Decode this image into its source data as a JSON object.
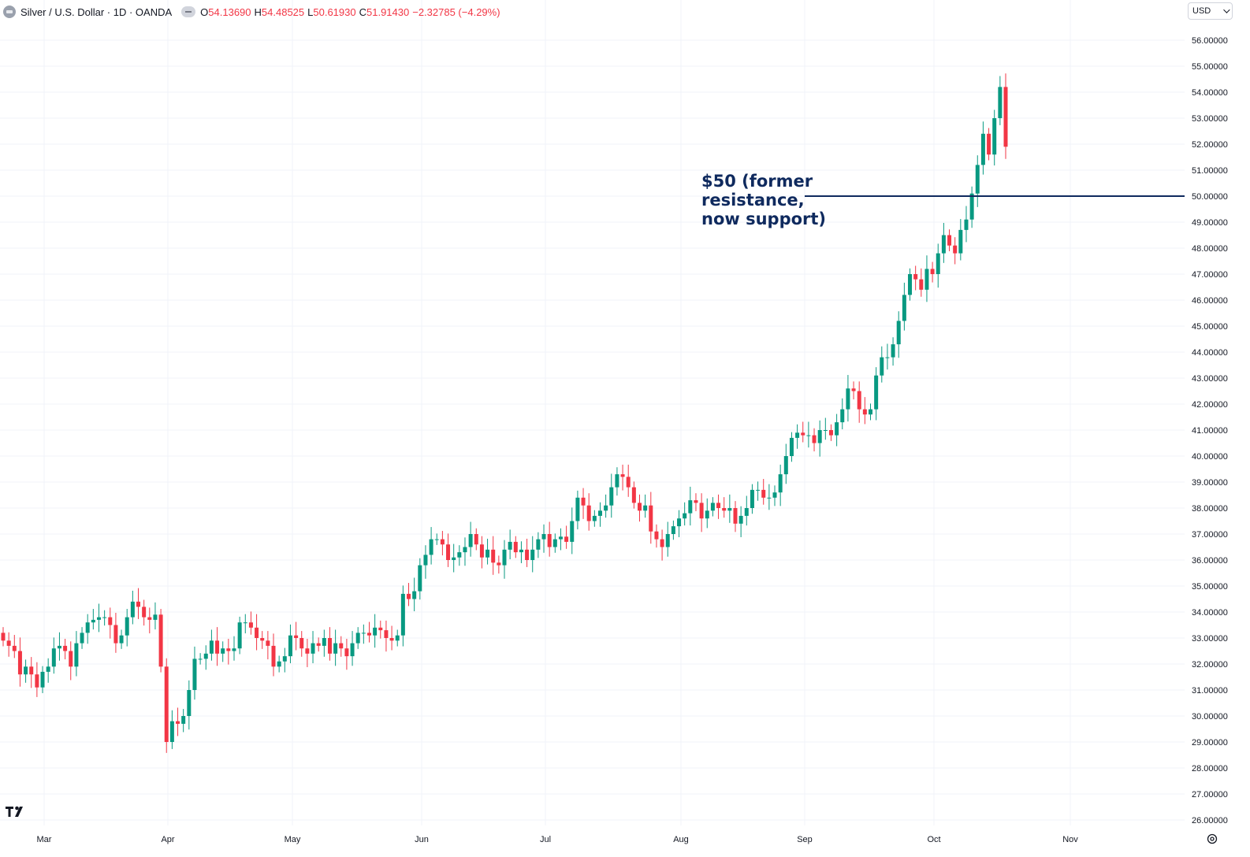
{
  "header": {
    "symbol": "Silver / U.S. Dollar · 1D · OANDA",
    "o_label": "O",
    "o_value": "54.13690",
    "h_label": "H",
    "h_value": "54.48525",
    "l_label": "L",
    "l_value": "50.61930",
    "c_label": "C",
    "c_value": "51.91430",
    "change": "−2.32785 (−4.29%)"
  },
  "currency_selector": {
    "label": "USD"
  },
  "annotation": {
    "text": "$50 (former resistance, now support)",
    "price": 50
  },
  "colors": {
    "up": "#089981",
    "down": "#f23645",
    "grid": "#f0f3fa",
    "annotation": "#0f2a5e",
    "text": "#131722"
  },
  "chart_data": {
    "type": "candlestick",
    "y_ticks": [
      "26.00000",
      "27.00000",
      "28.00000",
      "29.00000",
      "30.00000",
      "31.00000",
      "32.00000",
      "33.00000",
      "34.00000",
      "35.00000",
      "36.00000",
      "37.00000",
      "38.00000",
      "39.00000",
      "40.00000",
      "41.00000",
      "42.00000",
      "43.00000",
      "44.00000",
      "45.00000",
      "46.00000",
      "47.00000",
      "48.00000",
      "49.00000",
      "50.00000",
      "51.00000",
      "52.00000",
      "53.00000",
      "54.00000",
      "55.00000",
      "56.00000"
    ],
    "x_labels": [
      "Mar",
      "Apr",
      "May",
      "Jun",
      "Jul",
      "Aug",
      "Sep",
      "Oct",
      "Nov"
    ],
    "grid": true,
    "closes": [
      32.9,
      32.7,
      32.5,
      31.6,
      31.9,
      31.6,
      31.1,
      31.7,
      31.9,
      32.6,
      32.7,
      32.5,
      31.9,
      32.8,
      33.2,
      33.6,
      33.7,
      33.8,
      33.8,
      33.5,
      32.8,
      33.1,
      33.8,
      34.4,
      34.2,
      33.8,
      33.7,
      33.9,
      31.9,
      29.0,
      29.8,
      29.7,
      30.0,
      31.0,
      32.2,
      32.2,
      32.4,
      32.9,
      32.4,
      32.6,
      32.5,
      32.6,
      33.6,
      33.6,
      33.4,
      33.0,
      32.9,
      32.7,
      31.9,
      32.1,
      32.3,
      33.1,
      33.0,
      32.6,
      32.4,
      32.8,
      32.7,
      33.0,
      32.4,
      32.8,
      32.6,
      32.3,
      32.8,
      33.2,
      33.2,
      33.1,
      33.4,
      33.3,
      33.0,
      32.9,
      33.1,
      34.7,
      34.5,
      34.8,
      35.8,
      36.2,
      36.8,
      36.8,
      36.6,
      36.0,
      36.1,
      36.3,
      36.5,
      37.0,
      36.6,
      36.1,
      36.4,
      35.9,
      35.8,
      36.4,
      36.7,
      36.3,
      36.4,
      36.0,
      36.4,
      36.8,
      37.0,
      36.5,
      36.8,
      36.9,
      36.7,
      37.5,
      38.4,
      38.1,
      37.5,
      37.7,
      37.9,
      38.1,
      38.8,
      39.3,
      39.2,
      38.8,
      38.2,
      37.9,
      38.1,
      37.1,
      36.8,
      36.5,
      37.0,
      37.3,
      37.6,
      37.8,
      38.3,
      38.2,
      37.6,
      37.9,
      38.2,
      38.0,
      37.9,
      38.0,
      37.4,
      37.7,
      38.0,
      38.7,
      38.7,
      38.4,
      38.4,
      38.6,
      39.3,
      40.0,
      40.7,
      40.9,
      40.8,
      40.8,
      40.5,
      41.0,
      41.0,
      40.8,
      41.3,
      41.8,
      42.6,
      42.5,
      41.8,
      41.6,
      41.8,
      43.1,
      43.8,
      43.8,
      44.3,
      45.2,
      46.2,
      47.0,
      46.8,
      46.4,
      47.2,
      47.0,
      47.8,
      48.5,
      48.1,
      47.8,
      48.7,
      49.1,
      50.1,
      51.2,
      52.4,
      51.6,
      53.0,
      54.2,
      51.9
    ]
  }
}
